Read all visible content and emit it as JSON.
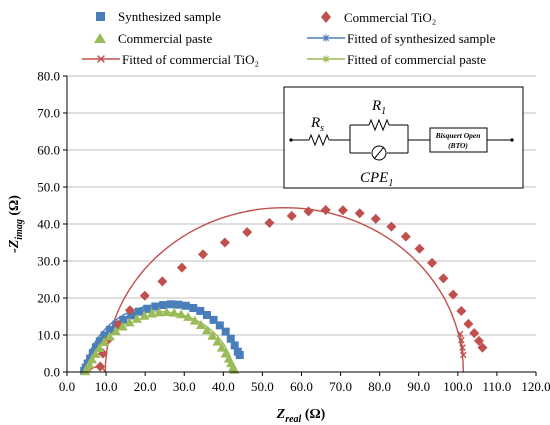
{
  "chart_data": {
    "type": "scatter",
    "xlabel_main": "Z",
    "xlabel_sub": "real",
    "xlabel_unit": " (Ω)",
    "ylabel_main": "-Z",
    "ylabel_sub": "imag",
    "ylabel_unit": " (Ω)",
    "xlim": [
      0,
      120
    ],
    "ylim": [
      0,
      80
    ],
    "x_ticks": [
      "0.0",
      "10.0",
      "20.0",
      "30.0",
      "40.0",
      "50.0",
      "60.0",
      "70.0",
      "80.0",
      "90.0",
      "100.0",
      "110.0",
      "120.0"
    ],
    "y_ticks": [
      "0.0",
      "10.0",
      "20.0",
      "30.0",
      "40.0",
      "50.0",
      "60.0",
      "70.0",
      "80.0"
    ],
    "grid": "horizontal major gridlines",
    "legend_position": "top",
    "series": [
      {
        "name": "Synthesized sample",
        "kind": "markers",
        "marker": "square",
        "color": "#4a7ebb",
        "x": [
          4.4,
          4.8,
          5.3,
          5.9,
          6.6,
          7.4,
          8.4,
          9.6,
          11.0,
          12.6,
          14.4,
          16.4,
          18.4,
          20.5,
          22.6,
          24.6,
          26.6,
          28.5,
          30.4,
          32.3,
          34.1,
          35.8,
          37.5,
          39.1,
          40.6,
          41.9,
          42.9,
          43.7,
          44.2
        ],
        "y": [
          0.3,
          1.2,
          2.3,
          3.6,
          5.1,
          6.7,
          8.3,
          9.9,
          11.4,
          12.8,
          14.1,
          15.3,
          16.3,
          17.1,
          17.7,
          18.1,
          18.3,
          18.2,
          17.9,
          17.3,
          16.5,
          15.4,
          14.1,
          12.6,
          10.9,
          9.0,
          7.2,
          5.5,
          4.6
        ]
      },
      {
        "name": "Commercial TiO₂",
        "kind": "markers",
        "marker": "diamond",
        "color": "#c0504d",
        "x": [
          8.5,
          9.2,
          10.8,
          13.1,
          16.1,
          19.9,
          24.4,
          29.4,
          34.8,
          40.4,
          46.1,
          51.8,
          57.5,
          61.8,
          66.2,
          70.6,
          74.9,
          79.0,
          83.0,
          86.7,
          90.2,
          93.4,
          96.3,
          98.8,
          100.9,
          102.7,
          104.2,
          105.4,
          106.3
        ],
        "y": [
          1.5,
          5.0,
          9.0,
          12.8,
          16.7,
          20.6,
          24.5,
          28.2,
          31.8,
          35.0,
          37.8,
          40.3,
          42.2,
          43.4,
          43.8,
          43.7,
          42.9,
          41.4,
          39.3,
          36.6,
          33.3,
          29.5,
          25.3,
          20.9,
          16.5,
          13.0,
          10.5,
          8.4,
          6.6
        ]
      },
      {
        "name": "Commercial paste",
        "kind": "markers",
        "marker": "triangle",
        "color": "#9bbb59",
        "x": [
          4.7,
          5.1,
          5.7,
          6.4,
          7.3,
          8.3,
          9.5,
          10.9,
          12.5,
          14.2,
          16.0,
          17.9,
          19.8,
          21.7,
          23.6,
          25.5,
          27.4,
          29.2,
          31.0,
          32.7,
          34.3,
          35.8,
          37.2,
          38.5,
          39.6,
          40.6,
          41.4,
          42.0,
          42.5,
          42.8
        ],
        "y": [
          0.2,
          1.0,
          2.1,
          3.4,
          4.9,
          6.5,
          8.1,
          9.6,
          11.0,
          12.3,
          13.4,
          14.4,
          15.2,
          15.8,
          16.1,
          16.2,
          16.0,
          15.6,
          14.9,
          13.9,
          12.7,
          11.3,
          9.8,
          8.2,
          6.6,
          5.0,
          3.6,
          2.4,
          1.3,
          0.6
        ]
      },
      {
        "name": "Fitted of synthesized sample",
        "kind": "line",
        "marker": "star",
        "color": "#4a7ebb",
        "center": [
          25.0,
          -2.0
        ],
        "radius": [
          20.5,
          20.3
        ],
        "x_from": 4.6,
        "x_to": 43.8
      },
      {
        "name": "Fitted of commercial TiO₂",
        "kind": "line",
        "marker": "x",
        "color": "#c0504d",
        "center": [
          55.6,
          0
        ],
        "radius": [
          45.8,
          44.4
        ],
        "x_from": 9.8,
        "x_to": 101.4,
        "stub": {
          "x": [
            4.8,
            6.8,
            8.8,
            9.8
          ],
          "y": [
            0.0,
            1.2,
            1.6,
            0.0
          ]
        },
        "tail_markers": {
          "x": [
            100.6,
            100.9,
            101.2,
            101.4
          ],
          "y": [
            10.3,
            8.6,
            6.6,
            4.6
          ]
        }
      },
      {
        "name": "Fitted of commercial paste",
        "kind": "line",
        "marker": "star",
        "color": "#9bbb59",
        "center": [
          23.7,
          -1.5
        ],
        "radius": [
          19.0,
          17.8
        ],
        "x_from": 4.8,
        "x_to": 42.6
      }
    ],
    "inset": {
      "rs_main": "R",
      "rs_sub": "s",
      "r1_main": "R",
      "r1_sub": "1",
      "cpe_main": "CPE",
      "cpe_sub": "1",
      "bto_line1": "Bisquert Open",
      "bto_line2": "(BTO)"
    }
  }
}
